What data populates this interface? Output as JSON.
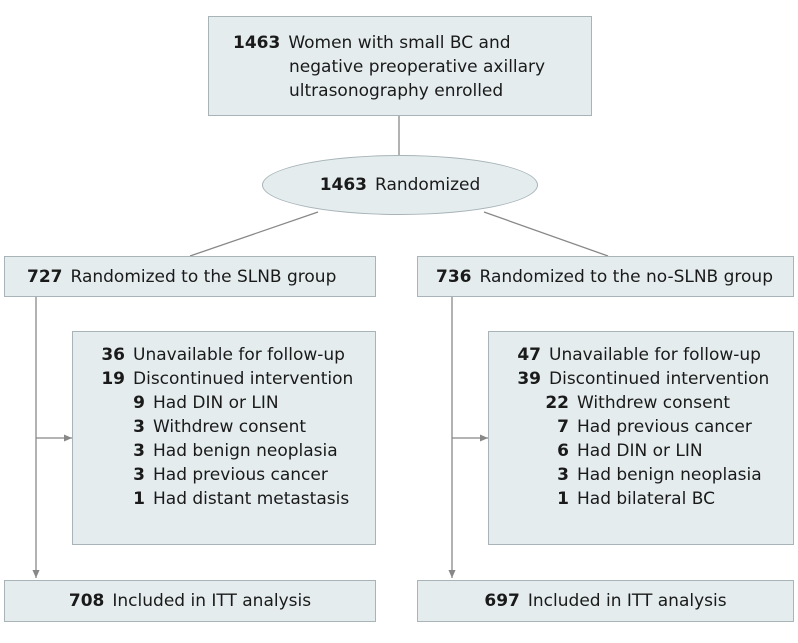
{
  "enrolled": {
    "count": "1463",
    "lines": [
      "Women with small BC and",
      "negative preoperative axillary",
      "ultrasonography enrolled"
    ]
  },
  "randomized": {
    "count": "1463",
    "label": "Randomized"
  },
  "slnb": {
    "group": {
      "count": "727",
      "label": "Randomized to the SLNB group"
    },
    "excluded": [
      {
        "count": "36",
        "label": "Unavailable for follow-up"
      },
      {
        "count": "19",
        "label": "Discontinued intervention"
      },
      {
        "count": "9",
        "label": "Had DIN or LIN"
      },
      {
        "count": "3",
        "label": "Withdrew consent"
      },
      {
        "count": "3",
        "label": "Had benign neoplasia"
      },
      {
        "count": "3",
        "label": "Had previous cancer"
      },
      {
        "count": "1",
        "label": "Had distant metastasis"
      }
    ],
    "analysis": {
      "count": "708",
      "label": "Included in ITT analysis"
    }
  },
  "noslnb": {
    "group": {
      "count": "736",
      "label": "Randomized to the no-SLNB group"
    },
    "excluded": [
      {
        "count": "47",
        "label": "Unavailable for follow-up"
      },
      {
        "count": "39",
        "label": "Discontinued intervention"
      },
      {
        "count": "22",
        "label": "Withdrew consent"
      },
      {
        "count": "7",
        "label": "Had previous cancer"
      },
      {
        "count": "6",
        "label": "Had DIN or LIN"
      },
      {
        "count": "3",
        "label": "Had benign neoplasia"
      },
      {
        "count": "1",
        "label": "Had bilateral BC"
      }
    ],
    "analysis": {
      "count": "697",
      "label": "Included in ITT analysis"
    }
  },
  "colors": {
    "box_fill": "#e4ecee",
    "box_border": "#a8b4b8",
    "connector": "#888888"
  }
}
